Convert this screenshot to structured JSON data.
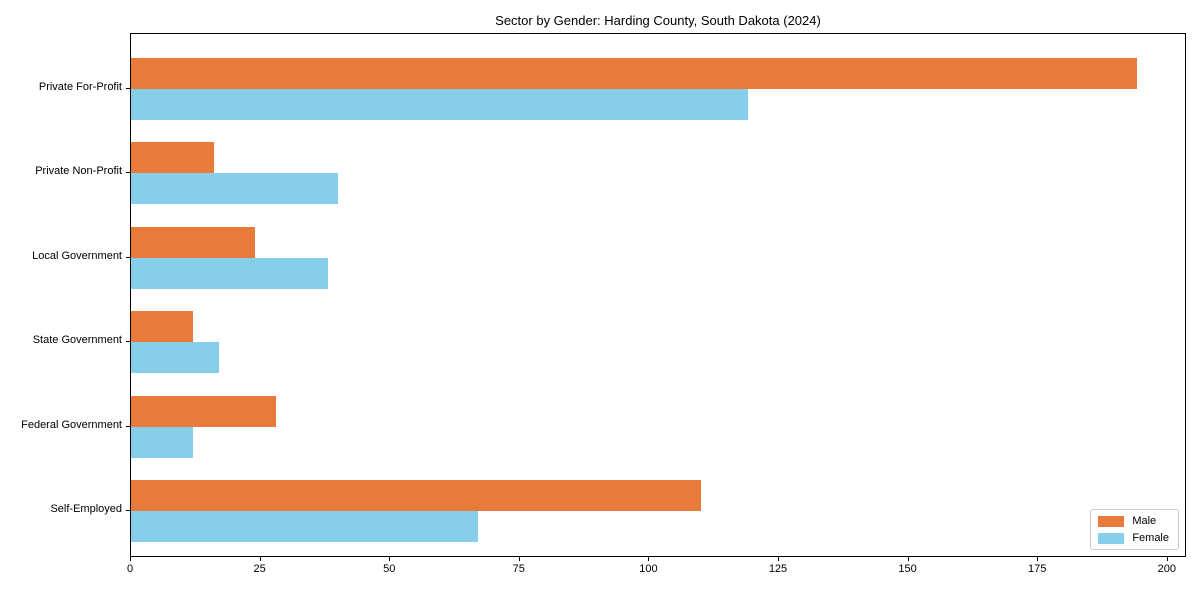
{
  "figure": {
    "background": "#ffffff",
    "text_color": "#000000"
  },
  "chart_data": {
    "type": "bar",
    "orientation": "horizontal",
    "title": "Sector by Gender: Harding County, South Dakota (2024)",
    "categories": [
      "Private For-Profit",
      "Private Non-Profit",
      "Local Government",
      "State Government",
      "Federal Government",
      "Self-Employed"
    ],
    "series": [
      {
        "name": "Male",
        "color": "#e87a3c",
        "values": [
          194,
          16,
          24,
          12,
          28,
          110
        ]
      },
      {
        "name": "Female",
        "color": "#87ceeb",
        "values": [
          119,
          40,
          38,
          17,
          12,
          67
        ]
      }
    ],
    "xlabel": "",
    "ylabel": "",
    "xlim": [
      0,
      203.7
    ],
    "xticks": [
      0,
      25,
      50,
      75,
      100,
      125,
      150,
      175,
      200
    ],
    "grid": false,
    "legend": {
      "position": "lower-right",
      "entries": [
        "Male",
        "Female"
      ]
    }
  }
}
